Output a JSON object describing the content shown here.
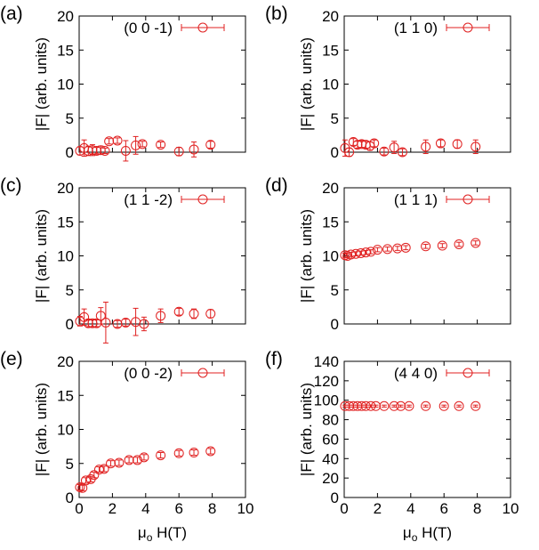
{
  "figure": {
    "panel_letters": [
      "(a)",
      "(b)",
      "(c)",
      "(d)",
      "(e)",
      "(f)"
    ],
    "xlabel_main": "μ",
    "xlabel_sub": "o",
    "xlabel_tail": " H(T)",
    "ylabel": "|F| (arb. units)",
    "marker_color": "#e02020"
  },
  "chart_data": [
    {
      "type": "scatter",
      "panel": "(a)",
      "legend": "(0 0 -1)",
      "xlim": [
        0,
        10
      ],
      "ylim": [
        0,
        20
      ],
      "xticks": [],
      "yticks": [
        0,
        5,
        10,
        15,
        20
      ],
      "points": [
        {
          "x": 0.05,
          "y": 0.2,
          "err": 0.6
        },
        {
          "x": 0.3,
          "y": 0.6,
          "err": 1.2
        },
        {
          "x": 0.55,
          "y": 0.2,
          "err": 0.7
        },
        {
          "x": 0.8,
          "y": 0.3,
          "err": 0.8
        },
        {
          "x": 1.05,
          "y": 0.2,
          "err": 0.5
        },
        {
          "x": 1.3,
          "y": 0.3,
          "err": 0.6
        },
        {
          "x": 1.55,
          "y": 0.2,
          "err": 0.4
        },
        {
          "x": 1.8,
          "y": 1.6,
          "err": 0.4
        },
        {
          "x": 2.3,
          "y": 1.7,
          "err": 0.4
        },
        {
          "x": 2.8,
          "y": 0.2,
          "err": 1.5
        },
        {
          "x": 3.4,
          "y": 1.0,
          "err": 1.3
        },
        {
          "x": 3.8,
          "y": 1.2,
          "err": 0.4
        },
        {
          "x": 4.9,
          "y": 1.1,
          "err": 0.4
        },
        {
          "x": 6.0,
          "y": 0.1,
          "err": 0.6
        },
        {
          "x": 6.9,
          "y": 0.4,
          "err": 1.1
        },
        {
          "x": 7.9,
          "y": 1.1,
          "err": 0.5
        }
      ]
    },
    {
      "type": "scatter",
      "panel": "(b)",
      "legend": "(1 1 0)",
      "xlim": [
        0,
        10
      ],
      "ylim": [
        0,
        20
      ],
      "xticks": [],
      "yticks": [
        0,
        5,
        10,
        15,
        20
      ],
      "points": [
        {
          "x": 0.05,
          "y": 0.6,
          "err": 1.2
        },
        {
          "x": 0.3,
          "y": 0.0,
          "err": 0.6
        },
        {
          "x": 0.55,
          "y": 1.5,
          "err": 0.5
        },
        {
          "x": 0.8,
          "y": 1.1,
          "err": 0.5
        },
        {
          "x": 1.05,
          "y": 1.2,
          "err": 0.5
        },
        {
          "x": 1.3,
          "y": 1.1,
          "err": 0.5
        },
        {
          "x": 1.55,
          "y": 0.9,
          "err": 0.6
        },
        {
          "x": 1.8,
          "y": 1.3,
          "err": 0.5
        },
        {
          "x": 2.4,
          "y": 0.1,
          "err": 0.5
        },
        {
          "x": 3.0,
          "y": 0.7,
          "err": 0.9
        },
        {
          "x": 3.5,
          "y": 0.0,
          "err": 0.5
        },
        {
          "x": 4.9,
          "y": 0.8,
          "err": 1.0
        },
        {
          "x": 5.8,
          "y": 1.3,
          "err": 0.5
        },
        {
          "x": 6.8,
          "y": 1.2,
          "err": 0.6
        },
        {
          "x": 7.9,
          "y": 0.8,
          "err": 1.0
        }
      ]
    },
    {
      "type": "scatter",
      "panel": "(c)",
      "legend": "(1 1 -2)",
      "xlim": [
        0,
        10
      ],
      "ylim": [
        0,
        20
      ],
      "xticks": [],
      "yticks": [
        0,
        5,
        10,
        15,
        20
      ],
      "points": [
        {
          "x": 0.05,
          "y": 0.4,
          "err": 0.7
        },
        {
          "x": 0.3,
          "y": 1.0,
          "err": 1.2
        },
        {
          "x": 0.55,
          "y": 0.1,
          "err": 0.5
        },
        {
          "x": 0.8,
          "y": 0.1,
          "err": 0.5
        },
        {
          "x": 1.05,
          "y": 0.1,
          "err": 0.5
        },
        {
          "x": 1.3,
          "y": 1.2,
          "err": 1.2
        },
        {
          "x": 1.6,
          "y": 0.2,
          "err": 3.0
        },
        {
          "x": 2.3,
          "y": 0.0,
          "err": 0.5
        },
        {
          "x": 2.8,
          "y": 0.2,
          "err": 0.5
        },
        {
          "x": 3.4,
          "y": 0.3,
          "err": 2.0
        },
        {
          "x": 3.9,
          "y": 0.0,
          "err": 1.0
        },
        {
          "x": 4.9,
          "y": 1.2,
          "err": 1.0
        },
        {
          "x": 6.0,
          "y": 1.8,
          "err": 0.5
        },
        {
          "x": 6.9,
          "y": 1.5,
          "err": 0.7
        },
        {
          "x": 7.9,
          "y": 1.5,
          "err": 0.6
        }
      ]
    },
    {
      "type": "scatter",
      "panel": "(d)",
      "legend": "(1 1 1)",
      "xlim": [
        0,
        10
      ],
      "ylim": [
        0,
        20
      ],
      "xticks": [],
      "yticks": [
        0,
        5,
        10,
        15,
        20
      ],
      "points": [
        {
          "x": 0.05,
          "y": 10.1,
          "err": 0.3
        },
        {
          "x": 0.2,
          "y": 10.0,
          "err": 0.3
        },
        {
          "x": 0.4,
          "y": 10.2,
          "err": 0.3
        },
        {
          "x": 0.7,
          "y": 10.3,
          "err": 0.3
        },
        {
          "x": 1.0,
          "y": 10.4,
          "err": 0.3
        },
        {
          "x": 1.3,
          "y": 10.5,
          "err": 0.3
        },
        {
          "x": 1.6,
          "y": 10.6,
          "err": 0.3
        },
        {
          "x": 2.0,
          "y": 10.9,
          "err": 0.3
        },
        {
          "x": 2.6,
          "y": 11.0,
          "err": 0.3
        },
        {
          "x": 3.2,
          "y": 11.1,
          "err": 0.3
        },
        {
          "x": 3.7,
          "y": 11.2,
          "err": 0.3
        },
        {
          "x": 4.9,
          "y": 11.4,
          "err": 0.3
        },
        {
          "x": 5.9,
          "y": 11.5,
          "err": 0.3
        },
        {
          "x": 6.9,
          "y": 11.7,
          "err": 0.3
        },
        {
          "x": 7.9,
          "y": 11.9,
          "err": 0.3
        }
      ]
    },
    {
      "type": "scatter",
      "panel": "(e)",
      "legend": "(0 0 -2)",
      "xlim": [
        0,
        10
      ],
      "ylim": [
        0,
        20
      ],
      "xticks": [
        0,
        2,
        4,
        6,
        8,
        10
      ],
      "yticks": [
        0,
        5,
        10,
        15,
        20
      ],
      "points": [
        {
          "x": 0.05,
          "y": 1.5,
          "err": 0.4
        },
        {
          "x": 0.2,
          "y": 1.4,
          "err": 0.4
        },
        {
          "x": 0.4,
          "y": 2.5,
          "err": 0.4
        },
        {
          "x": 0.7,
          "y": 2.7,
          "err": 0.4
        },
        {
          "x": 0.9,
          "y": 3.3,
          "err": 0.4
        },
        {
          "x": 1.2,
          "y": 4.1,
          "err": 0.4
        },
        {
          "x": 1.5,
          "y": 4.2,
          "err": 0.4
        },
        {
          "x": 1.9,
          "y": 5.0,
          "err": 0.4
        },
        {
          "x": 2.4,
          "y": 5.1,
          "err": 0.4
        },
        {
          "x": 3.0,
          "y": 5.5,
          "err": 0.4
        },
        {
          "x": 3.5,
          "y": 5.5,
          "err": 0.4
        },
        {
          "x": 3.9,
          "y": 5.9,
          "err": 0.4
        },
        {
          "x": 4.9,
          "y": 6.2,
          "err": 0.4
        },
        {
          "x": 6.0,
          "y": 6.5,
          "err": 0.4
        },
        {
          "x": 6.9,
          "y": 6.6,
          "err": 0.4
        },
        {
          "x": 7.9,
          "y": 6.8,
          "err": 0.4
        }
      ]
    },
    {
      "type": "scatter",
      "panel": "(f)",
      "legend": "(4 4 0)",
      "xlim": [
        0,
        10
      ],
      "ylim": [
        0,
        140
      ],
      "xticks": [
        0,
        2,
        4,
        6,
        8,
        10
      ],
      "yticks": [
        0,
        20,
        40,
        60,
        80,
        100,
        120,
        140
      ],
      "points": [
        {
          "x": 0.05,
          "y": 94,
          "err": 1
        },
        {
          "x": 0.3,
          "y": 94,
          "err": 1
        },
        {
          "x": 0.55,
          "y": 94,
          "err": 1
        },
        {
          "x": 0.8,
          "y": 94,
          "err": 1
        },
        {
          "x": 1.05,
          "y": 94,
          "err": 1
        },
        {
          "x": 1.3,
          "y": 94,
          "err": 1
        },
        {
          "x": 1.6,
          "y": 94,
          "err": 1
        },
        {
          "x": 1.9,
          "y": 94,
          "err": 1
        },
        {
          "x": 2.4,
          "y": 94,
          "err": 1
        },
        {
          "x": 3.0,
          "y": 94,
          "err": 1
        },
        {
          "x": 3.4,
          "y": 94,
          "err": 1
        },
        {
          "x": 3.9,
          "y": 94,
          "err": 1
        },
        {
          "x": 4.9,
          "y": 94,
          "err": 1
        },
        {
          "x": 6.0,
          "y": 94,
          "err": 1
        },
        {
          "x": 6.9,
          "y": 94,
          "err": 1
        },
        {
          "x": 7.9,
          "y": 94,
          "err": 1
        }
      ]
    }
  ]
}
